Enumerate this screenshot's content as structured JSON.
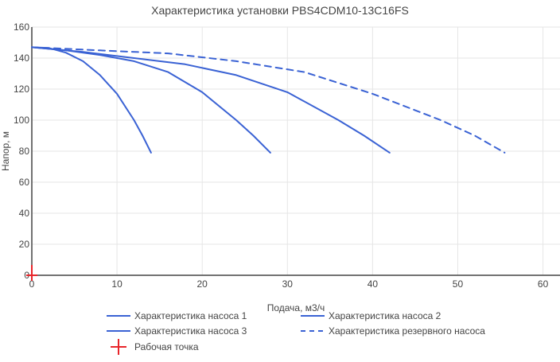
{
  "chart_data": {
    "type": "line",
    "title": "Характеристика установки PBS4CDM10-13C16FS",
    "xlabel": "Подача, м3/ч",
    "ylabel": "Напор, м",
    "xlim": [
      0,
      62
    ],
    "ylim": [
      0,
      160
    ],
    "x_ticks": [
      "0",
      "10",
      "20",
      "30",
      "40",
      "50",
      "60"
    ],
    "y_ticks": [
      "0",
      "20",
      "40",
      "60",
      "80",
      "100",
      "120",
      "140",
      "160"
    ],
    "grid": true,
    "legend_position": "bottom",
    "series": [
      {
        "name": "Характеристика насоса 1",
        "color": "#3a62d4",
        "dash": "solid",
        "points": [
          [
            0,
            147
          ],
          [
            2,
            146.5
          ],
          [
            4,
            143.5
          ],
          [
            6,
            138
          ],
          [
            8,
            129
          ],
          [
            10,
            117
          ],
          [
            12,
            100
          ],
          [
            13,
            90
          ],
          [
            14,
            79
          ]
        ]
      },
      {
        "name": "Характеристика насоса 2",
        "color": "#3a62d4",
        "dash": "solid",
        "points": [
          [
            0,
            147
          ],
          [
            4,
            145
          ],
          [
            8,
            142
          ],
          [
            12,
            138
          ],
          [
            16,
            131
          ],
          [
            20,
            118
          ],
          [
            24,
            100
          ],
          [
            26,
            90
          ],
          [
            28,
            79
          ]
        ]
      },
      {
        "name": "Характеристика насоса 3",
        "color": "#3a62d4",
        "dash": "solid",
        "points": [
          [
            0,
            147
          ],
          [
            6,
            144
          ],
          [
            12,
            140
          ],
          [
            18,
            136
          ],
          [
            24,
            129
          ],
          [
            30,
            118
          ],
          [
            36,
            100
          ],
          [
            39,
            90
          ],
          [
            42,
            79
          ]
        ]
      },
      {
        "name": "Характеристика резервного насоса",
        "color": "#3a62d4",
        "dash": "dash",
        "points": [
          [
            0,
            147
          ],
          [
            8,
            145
          ],
          [
            16,
            143
          ],
          [
            24,
            138
          ],
          [
            32,
            131
          ],
          [
            40,
            117
          ],
          [
            48,
            100
          ],
          [
            52,
            90
          ],
          [
            55.5,
            79
          ]
        ]
      }
    ],
    "operating_point": {
      "name": "Рабочая точка",
      "color": "#e8252a",
      "x": 0,
      "y": 0
    }
  }
}
